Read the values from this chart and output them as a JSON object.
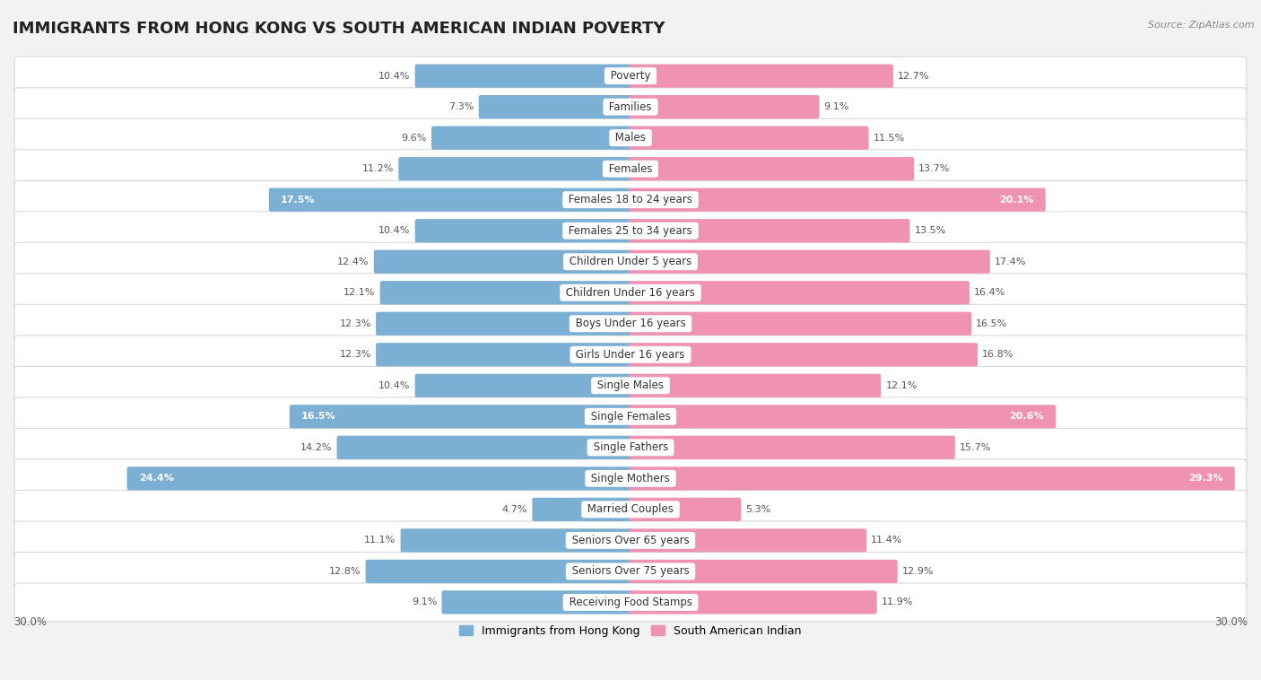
{
  "title": "IMMIGRANTS FROM HONG KONG VS SOUTH AMERICAN INDIAN POVERTY",
  "source": "Source: ZipAtlas.com",
  "categories": [
    "Poverty",
    "Families",
    "Males",
    "Females",
    "Females 18 to 24 years",
    "Females 25 to 34 years",
    "Children Under 5 years",
    "Children Under 16 years",
    "Boys Under 16 years",
    "Girls Under 16 years",
    "Single Males",
    "Single Females",
    "Single Fathers",
    "Single Mothers",
    "Married Couples",
    "Seniors Over 65 years",
    "Seniors Over 75 years",
    "Receiving Food Stamps"
  ],
  "hk_values": [
    10.4,
    7.3,
    9.6,
    11.2,
    17.5,
    10.4,
    12.4,
    12.1,
    12.3,
    12.3,
    10.4,
    16.5,
    14.2,
    24.4,
    4.7,
    11.1,
    12.8,
    9.1
  ],
  "sa_values": [
    12.7,
    9.1,
    11.5,
    13.7,
    20.1,
    13.5,
    17.4,
    16.4,
    16.5,
    16.8,
    12.1,
    20.6,
    15.7,
    29.3,
    5.3,
    11.4,
    12.9,
    11.9
  ],
  "hk_color": "#7bafd4",
  "sa_color": "#f093b0",
  "hk_label": "Immigrants from Hong Kong",
  "sa_label": "South American Indian",
  "axis_max": 30.0,
  "bg_color": "#f2f2f2",
  "row_bg_color": "#ffffff",
  "row_border_color": "#d8d8d8",
  "title_fontsize": 13,
  "label_fontsize": 8.5,
  "value_fontsize": 8,
  "legend_fontsize": 9,
  "source_fontsize": 8,
  "inside_label_indices_hk": [
    4,
    11,
    13
  ],
  "inside_label_indices_sa": [
    4,
    11,
    13
  ],
  "axis_label_left": "30.0%",
  "axis_label_right": "30.0%"
}
